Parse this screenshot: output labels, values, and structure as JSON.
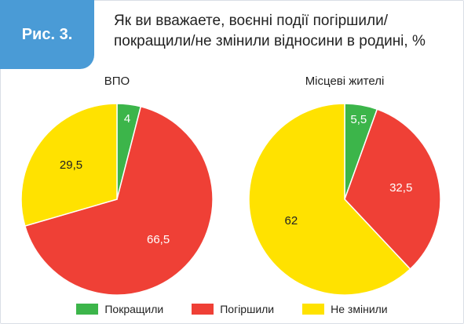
{
  "figure": {
    "badge_label": "Рис. 3.",
    "title_line1": "Як ви вважаете, воєнні події погіршили/",
    "title_line2": "покращили/не змінили відносини в родині, %"
  },
  "colors": {
    "badge": "#4a9bd6",
    "improved": "#3cb54a",
    "worsened": "#ef4036",
    "unchanged": "#ffe200"
  },
  "chart_data": [
    {
      "type": "pie",
      "title": "ВПО",
      "categories": [
        "Покращили",
        "Погіршили",
        "Не змінили"
      ],
      "values": [
        4,
        66.5,
        29.5
      ],
      "labels": [
        "4",
        "66,5",
        "29,5"
      ]
    },
    {
      "type": "pie",
      "title": "Місцеві жителі",
      "categories": [
        "Покращили",
        "Погіршили",
        "Не змінили"
      ],
      "values": [
        5.5,
        32.5,
        62
      ],
      "labels": [
        "5,5",
        "32,5",
        "62"
      ]
    }
  ],
  "legend": {
    "placement": "bottom",
    "items": [
      {
        "label": "Покращили",
        "color": "#3cb54a"
      },
      {
        "label": "Погіршили",
        "color": "#ef4036"
      },
      {
        "label": "Не змінили",
        "color": "#ffe200"
      }
    ]
  }
}
